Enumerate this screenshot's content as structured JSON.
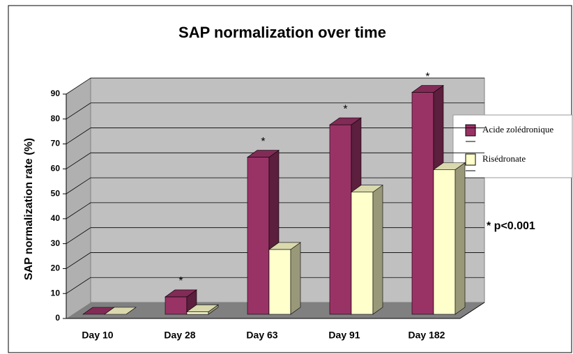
{
  "chart_data": {
    "type": "bar3d",
    "title": "SAP normalization over time",
    "y_label": "SAP normalization rate (%)",
    "categories": [
      "Day 10",
      "Day 28",
      "Day 63",
      "Day 91",
      "Day 182"
    ],
    "series": [
      {
        "name": "Acide zolédronique",
        "color": "#993366",
        "values": [
          0,
          7,
          63,
          76,
          89
        ]
      },
      {
        "name": "Risédronate",
        "color": "#ffffcc",
        "values": [
          0,
          1,
          26,
          49,
          58
        ]
      }
    ],
    "ylim": [
      0,
      90
    ],
    "yticks": [
      0,
      10,
      20,
      30,
      40,
      50,
      60,
      70,
      80,
      90
    ],
    "grid": true,
    "legend": "right",
    "annotations": [
      {
        "text": "*",
        "x": "Day 28"
      },
      {
        "text": "*",
        "x": "Day 63"
      },
      {
        "text": "*",
        "x": "Day 91"
      },
      {
        "text": "*",
        "x": "Day 182"
      }
    ],
    "note": "* p<0.001"
  }
}
